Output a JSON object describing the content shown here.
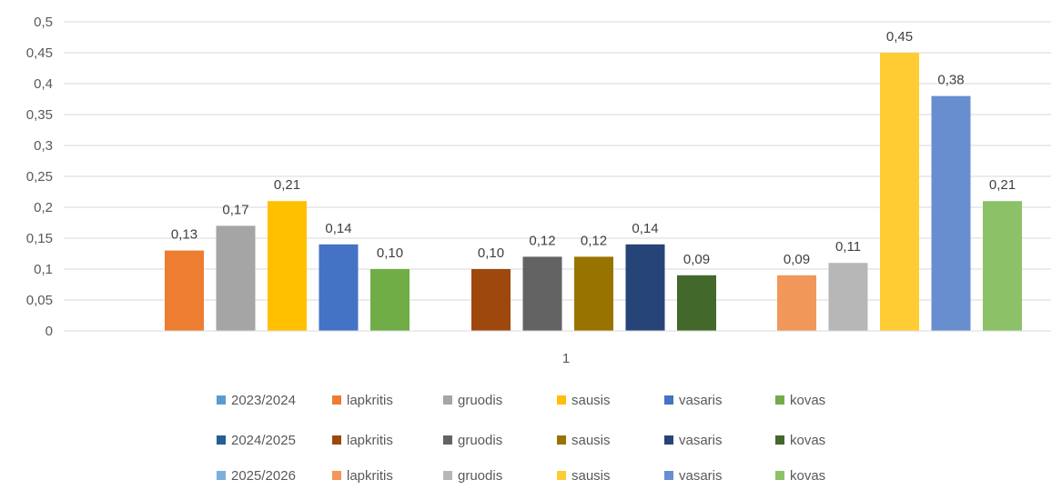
{
  "chart_data": {
    "type": "bar",
    "categories": [
      "1"
    ],
    "ylim": [
      0,
      0.5
    ],
    "yticks": [
      "0",
      "0,05",
      "0,1",
      "0,15",
      "0,2",
      "0,25",
      "0,3",
      "0,35",
      "0,4",
      "0,45",
      "0,5"
    ],
    "grid": true,
    "legend_position": "bottom",
    "groups": [
      {
        "name": "2023/2024",
        "color": "#5b9bd5",
        "series": [
          {
            "name": "lapkritis",
            "value": 0.13,
            "label": "0,13",
            "color": "#ed7d31"
          },
          {
            "name": "gruodis",
            "value": 0.17,
            "label": "0,17",
            "color": "#a5a5a5"
          },
          {
            "name": "sausis",
            "value": 0.21,
            "label": "0,21",
            "color": "#ffc000"
          },
          {
            "name": "vasaris",
            "value": 0.14,
            "label": "0,14",
            "color": "#4472c4"
          },
          {
            "name": "kovas",
            "value": 0.1,
            "label": "0,10",
            "color": "#70ad47"
          }
        ]
      },
      {
        "name": "2024/2025",
        "color": "#255e91",
        "series": [
          {
            "name": "lapkritis",
            "value": 0.1,
            "label": "0,10",
            "color": "#9e480e"
          },
          {
            "name": "gruodis",
            "value": 0.12,
            "label": "0,12",
            "color": "#636363"
          },
          {
            "name": "sausis",
            "value": 0.12,
            "label": "0,12",
            "color": "#997300"
          },
          {
            "name": "vasaris",
            "value": 0.14,
            "label": "0,14",
            "color": "#264478"
          },
          {
            "name": "kovas",
            "value": 0.09,
            "label": "0,09",
            "color": "#43682b"
          }
        ]
      },
      {
        "name": "2025/2026",
        "color": "#7cafdd",
        "series": [
          {
            "name": "lapkritis",
            "value": 0.09,
            "label": "0,09",
            "color": "#f1975a"
          },
          {
            "name": "gruodis",
            "value": 0.11,
            "label": "0,11",
            "color": "#b7b7b7"
          },
          {
            "name": "sausis",
            "value": 0.45,
            "label": "0,45",
            "color": "#ffcd33"
          },
          {
            "name": "vasaris",
            "value": 0.38,
            "label": "0,38",
            "color": "#698ed0"
          },
          {
            "name": "kovas",
            "value": 0.21,
            "label": "0,21",
            "color": "#8cc168"
          }
        ]
      }
    ]
  }
}
